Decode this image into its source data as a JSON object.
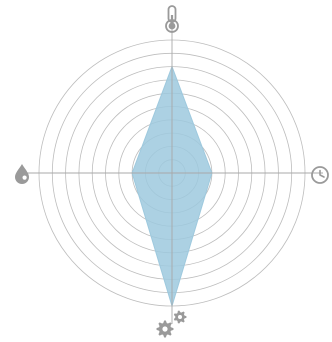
{
  "chart_data": {
    "type": "radar",
    "axes": [
      {
        "icon": "thermometer-icon",
        "value": 0.8
      },
      {
        "icon": "clock-icon",
        "value": 0.3
      },
      {
        "icon": "gears-icon",
        "value": 1.0
      },
      {
        "icon": "water-drop-icon",
        "value": 0.3
      }
    ],
    "ring_count": 10,
    "range": [
      0,
      1
    ],
    "grid": true,
    "colors": {
      "fill": "#9ec9de",
      "stroke": "#9ec9de",
      "grid": "#bdbdbd",
      "axis": "#a8a8a8",
      "icons": "#9a9a9a"
    }
  }
}
